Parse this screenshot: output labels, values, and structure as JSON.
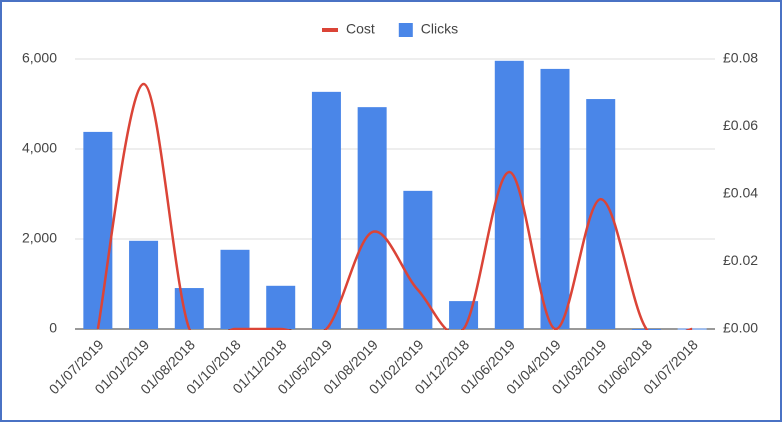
{
  "chart_data": {
    "type": "combo",
    "categories": [
      "01/07/2019",
      "01/01/2019",
      "01/08/2018",
      "01/10/2018",
      "01/11/2018",
      "01/05/2019",
      "01/08/2019",
      "01/02/2019",
      "01/12/2018",
      "01/06/2019",
      "01/04/2019",
      "01/03/2019",
      "01/06/2018",
      "01/07/2018"
    ],
    "series": [
      {
        "name": "Cost",
        "type": "line",
        "axis": "y2",
        "color": "#db4437",
        "values": [
          0,
          0.0726,
          0,
          0,
          0,
          0,
          0.0287,
          0.0116,
          0,
          0.0465,
          0,
          0.0385,
          0,
          0
        ]
      },
      {
        "name": "Clicks",
        "type": "bar",
        "color": "#4a86e8",
        "values": [
          4380,
          1960,
          910,
          1760,
          960,
          5270,
          4930,
          3070,
          620,
          5960,
          5780,
          5110,
          0,
          10
        ]
      }
    ],
    "ylim": [
      0,
      6000
    ],
    "yticks": [
      0,
      {
        "value": 2000,
        "label": "2,000"
      },
      {
        "value": 4000,
        "label": "4,000"
      },
      {
        "value": 6000,
        "label": "6,000"
      }
    ],
    "y2lim": [
      0,
      0.08
    ],
    "y2ticks": [
      {
        "value": 0,
        "label": "£0.00"
      },
      {
        "value": 0.02,
        "label": "£0.02"
      },
      {
        "value": 0.04,
        "label": "£0.04"
      },
      {
        "value": 0.06,
        "label": "£0.06"
      },
      {
        "value": 0.08,
        "label": "£0.08"
      }
    ],
    "grid": true,
    "legend": "top"
  }
}
